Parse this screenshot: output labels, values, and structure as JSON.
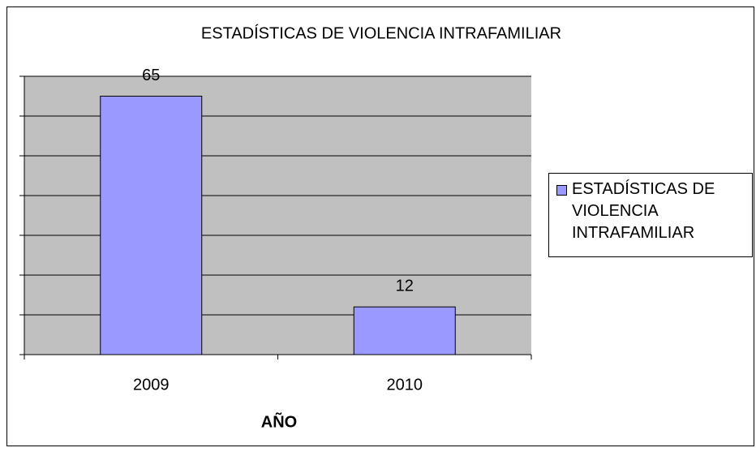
{
  "chart_data": {
    "type": "bar",
    "title": "ESTADÍSTICAS DE VIOLENCIA INTRAFAMILIAR",
    "categories": [
      "2009",
      "2010"
    ],
    "series": [
      {
        "name": "ESTADÍSTICAS DE VIOLENCIA INTRAFAMILIAR",
        "color": "#9999ff",
        "values": [
          65,
          12
        ]
      }
    ],
    "x_label": "AÑO",
    "ylim": [
      0,
      70
    ],
    "yticks": [
      0,
      10,
      20,
      30,
      40,
      50,
      60,
      70
    ],
    "grid": true,
    "legend": "right"
  }
}
